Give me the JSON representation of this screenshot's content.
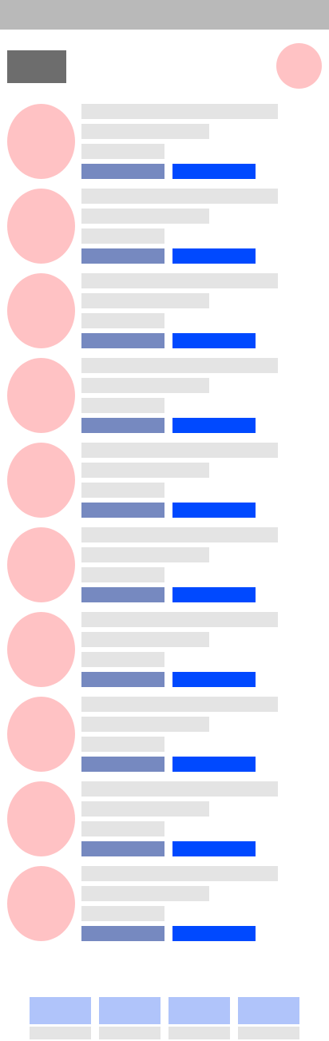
{
  "status_bar": {},
  "header": {
    "logo": "logo-placeholder",
    "profile_avatar": "avatar"
  },
  "feed": {
    "items": [
      {
        "title": "",
        "subtitle": "",
        "meta": "",
        "primary_action": "",
        "secondary_action": ""
      },
      {
        "title": "",
        "subtitle": "",
        "meta": "",
        "primary_action": "",
        "secondary_action": ""
      },
      {
        "title": "",
        "subtitle": "",
        "meta": "",
        "primary_action": "",
        "secondary_action": ""
      },
      {
        "title": "",
        "subtitle": "",
        "meta": "",
        "primary_action": "",
        "secondary_action": ""
      },
      {
        "title": "",
        "subtitle": "",
        "meta": "",
        "primary_action": "",
        "secondary_action": ""
      },
      {
        "title": "",
        "subtitle": "",
        "meta": "",
        "primary_action": "",
        "secondary_action": ""
      },
      {
        "title": "",
        "subtitle": "",
        "meta": "",
        "primary_action": "",
        "secondary_action": ""
      },
      {
        "title": "",
        "subtitle": "",
        "meta": "",
        "primary_action": "",
        "secondary_action": ""
      },
      {
        "title": "",
        "subtitle": "",
        "meta": "",
        "primary_action": "",
        "secondary_action": ""
      },
      {
        "title": "",
        "subtitle": "",
        "meta": "",
        "primary_action": "",
        "secondary_action": ""
      }
    ]
  },
  "tabbar": {
    "tabs": [
      {
        "label": ""
      },
      {
        "label": ""
      },
      {
        "label": ""
      },
      {
        "label": ""
      }
    ]
  },
  "colors": {
    "status_bar": "#b9b9b9",
    "logo": "#6d6d6d",
    "avatar": "#ffc2c4",
    "text_placeholder": "#e4e4e4",
    "secondary_button": "#7689c0",
    "primary_button": "#0049ff",
    "tab_icon": "#b0c4fa"
  }
}
